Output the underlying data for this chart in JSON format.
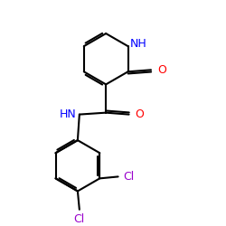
{
  "bg_color": "#ffffff",
  "bond_color": "#000000",
  "N_color": "#0000ff",
  "O_color": "#ff0000",
  "Cl_color": "#9900cc",
  "lw": 1.5,
  "dbo": 0.055,
  "figsize": [
    2.5,
    2.5
  ],
  "dpi": 100,
  "xlim": [
    0.0,
    5.5
  ],
  "ylim": [
    0.0,
    6.2
  ]
}
